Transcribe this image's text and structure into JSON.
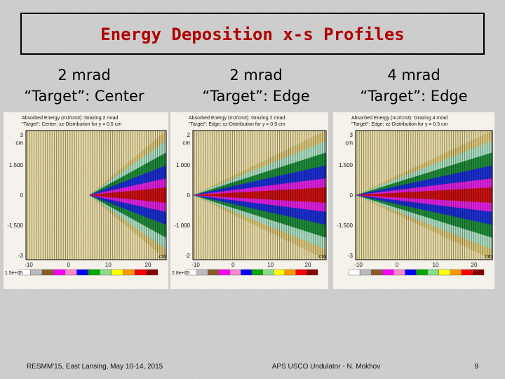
{
  "title": "Energy Deposition x-s Profiles",
  "panels": [
    {
      "heading": [
        "2 mrad",
        "“Target”: Center"
      ],
      "plot_title": [
        "Absorbed Energy (mJ/cm3): Grazing 2 mrad",
        "\"Target\": Center; xz-Distribution for y = 0.5 cm"
      ],
      "y_unit": "cm",
      "y_ticks": [
        "3",
        "1.500",
        "0",
        "-1.500",
        "-3"
      ],
      "x_ticks": [
        "-10",
        "0",
        "10",
        "20"
      ],
      "x_unit": "cm",
      "colorbar_min": "1.5e+05"
    },
    {
      "heading": [
        "2 mrad",
        "“Target”: Edge"
      ],
      "plot_title": [
        "Absorbed Energy (mJ/cm3): Grazing 2 mrad",
        "\"Target\": Edge; xz-Distribution for y = 0.5 cm"
      ],
      "y_unit": "cm",
      "y_ticks": [
        "2",
        "1.000",
        "0",
        "-1.000",
        "-2"
      ],
      "x_ticks": [
        "-10",
        "0",
        "10",
        "20"
      ],
      "x_unit": "cm",
      "colorbar_min": "2.8e+05"
    },
    {
      "heading": [
        "4 mrad",
        "“Target”: Edge"
      ],
      "plot_title": [
        "Absorbed Energy (mJ/cm3): Grazing 4 mrad",
        "\"Target\": Edge; xz-Distribution for y = 0.5 cm"
      ],
      "y_unit": "cm",
      "y_ticks": [
        "3",
        "1.500",
        "0",
        "-1.500",
        "-3"
      ],
      "x_ticks": [
        "-10",
        "0",
        "10",
        "20"
      ],
      "x_unit": "cm"
    }
  ],
  "footer": {
    "left": "RESMM'15, East Lansing, May 10-14, 2015",
    "center": "APS USCO Undulator - N. Mokhov",
    "page": "9"
  }
}
